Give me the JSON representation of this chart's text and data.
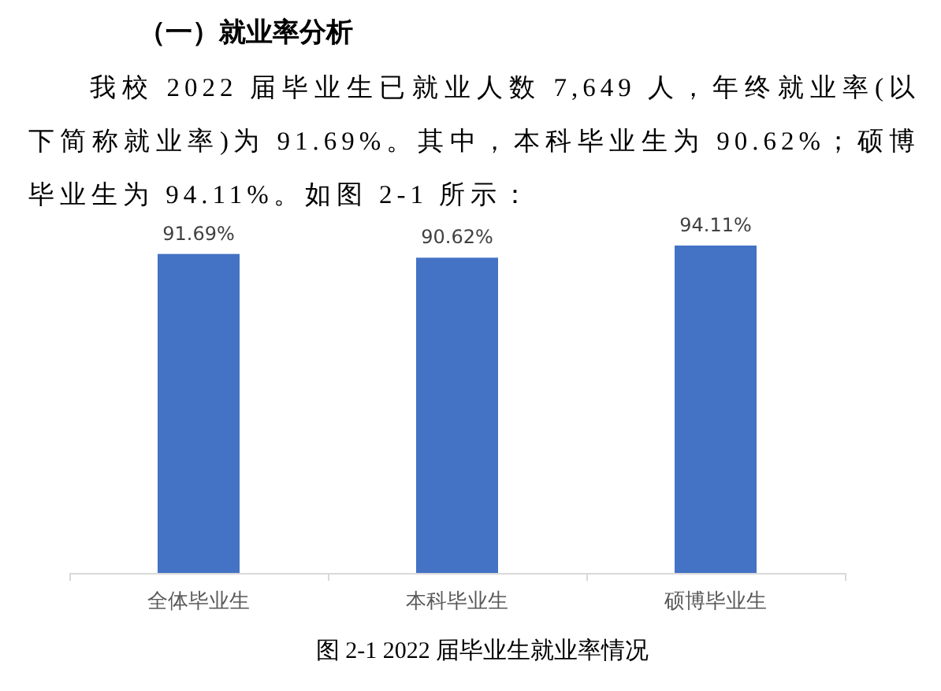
{
  "chart_data": {
    "type": "bar",
    "title": "（一）就业率分析",
    "subtitle": "我校 2022 届毕业生已就业人数 7,649 人，年终就业率(以下简称就业率)为 91.69%。其中，本科毕业生为 90.62%；硕博毕业生为 94.11%。如图 2-1 所示：",
    "categories": [
      "全体毕业生",
      "本科毕业生",
      "硕博毕业生"
    ],
    "values": [
      91.69,
      90.62,
      94.11
    ],
    "value_labels": [
      "91.69%",
      "90.62%",
      "94.11%"
    ],
    "color": "#4472c4",
    "annotations": [
      "图 2-1 2022 届毕业生就业率情况"
    ]
  }
}
